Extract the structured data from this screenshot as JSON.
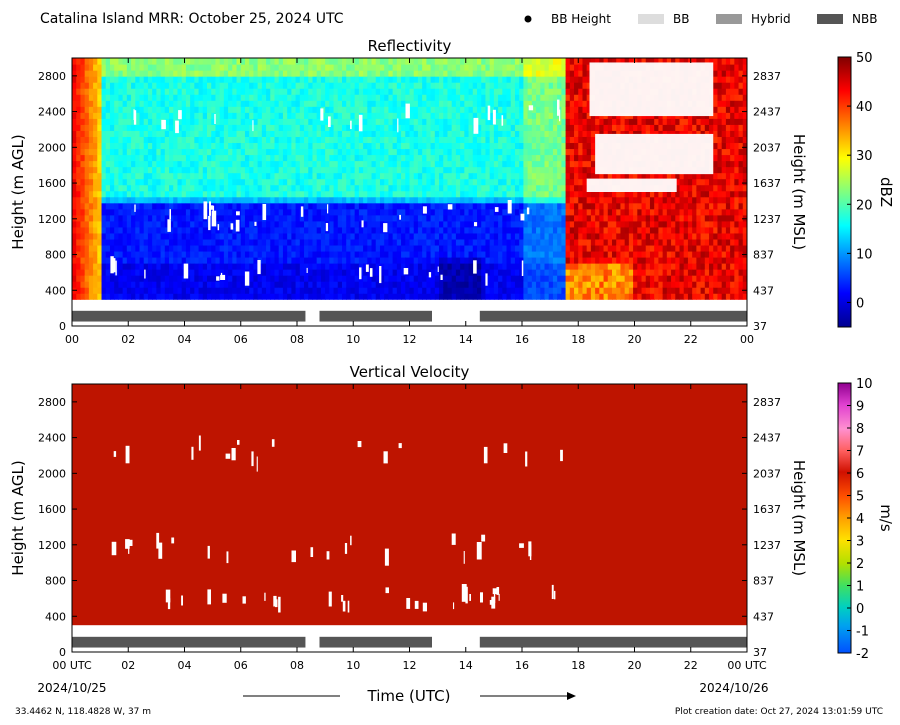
{
  "header": {
    "title": "Catalina Island MRR:  October 25, 2024 UTC",
    "legend": [
      {
        "symbol": "dot",
        "label": "BB Height",
        "color": "#000000"
      },
      {
        "symbol": "box",
        "label": "BB",
        "color": "#dddddd"
      },
      {
        "symbol": "box",
        "label": "Hybrid",
        "color": "#999999"
      },
      {
        "symbol": "box",
        "label": "NBB",
        "color": "#555555"
      }
    ]
  },
  "footer": {
    "location": "33.4462 N, 118.4828 W, 37 m",
    "creation": "Plot creation date: Oct 27, 2024 13:01:59 UTC",
    "xlabel": "Time (UTC)",
    "start_date": "2024/10/25",
    "end_date": "2024/10/26"
  },
  "chart_data": [
    {
      "type": "heatmap",
      "title": "Reflectivity",
      "ylabel": "Height (m AGL)",
      "ylabel_right": "Height (m MSL)",
      "colorbar_label": "dBZ",
      "x_ticks": [
        "00",
        "02",
        "04",
        "06",
        "08",
        "10",
        "12",
        "14",
        "16",
        "18",
        "20",
        "22",
        "00"
      ],
      "xlim": [
        0,
        24
      ],
      "y_ticks": [
        0,
        400,
        800,
        1200,
        1600,
        2000,
        2400,
        2800
      ],
      "y_ticks_right": [
        37,
        437,
        837,
        1237,
        1637,
        2037,
        2437,
        2837
      ],
      "ylim": [
        0,
        3000
      ],
      "colorbar": {
        "min": -5,
        "max": 50,
        "ticks": [
          0,
          10,
          20,
          30,
          40,
          50
        ]
      },
      "nbb_segments": [
        [
          0,
          8.3
        ],
        [
          8.8,
          12.8
        ],
        [
          14.5,
          24
        ]
      ],
      "regimes": [
        {
          "hours": [
            0,
            1.0
          ],
          "description": "edge high",
          "dbz_low": 30,
          "dbz_high": 45
        },
        {
          "hours": [
            1.0,
            17.5
          ],
          "description": "shallow",
          "dbz_low": 5,
          "dbz_high": 22
        },
        {
          "hours": [
            17.5,
            24
          ],
          "description": "deep high",
          "dbz_low": 40,
          "dbz_high": 50
        }
      ]
    },
    {
      "type": "heatmap",
      "title": "Vertical Velocity",
      "ylabel": "Height (m AGL)",
      "ylabel_right": "Height (m MSL)",
      "colorbar_label": "m/s",
      "x_ticks": [
        "00 UTC",
        "02",
        "04",
        "06",
        "08",
        "10",
        "12",
        "14",
        "16",
        "18",
        "20",
        "22",
        "00 UTC"
      ],
      "xlim": [
        0,
        24
      ],
      "y_ticks": [
        0,
        400,
        800,
        1200,
        1600,
        2000,
        2400,
        2800
      ],
      "y_ticks_right": [
        37,
        437,
        837,
        1237,
        1637,
        2037,
        2437,
        2837
      ],
      "ylim": [
        0,
        3000
      ],
      "colorbar": {
        "min": -2,
        "max": 10,
        "ticks": [
          -2,
          -1,
          0,
          1,
          2,
          3,
          4,
          5,
          6,
          7,
          8,
          9,
          10
        ]
      },
      "field_value": 6,
      "field_color": "#be1400",
      "nbb_segments": [
        [
          0,
          8.3
        ],
        [
          8.8,
          12.8
        ],
        [
          14.5,
          24
        ]
      ]
    }
  ]
}
